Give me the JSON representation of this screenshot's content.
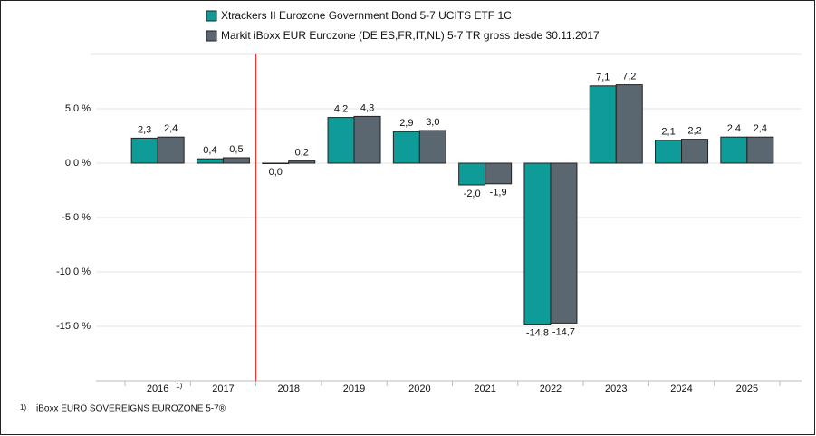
{
  "chart_data": {
    "type": "bar",
    "categories": [
      "2016",
      "2017",
      "2018",
      "2019",
      "2020",
      "2021",
      "2022",
      "2023",
      "2024",
      "2025"
    ],
    "series": [
      {
        "name": "Xtrackers II Eurozone Government Bond 5-7 UCITS ETF 1C",
        "color": "#0f9b98",
        "values": [
          2.3,
          0.4,
          0.0,
          4.2,
          2.9,
          -2.0,
          -14.8,
          7.1,
          2.1,
          2.4
        ],
        "value_labels": [
          "2,3",
          "0,4",
          "0,0",
          "4,2",
          "2,9",
          "-2,0",
          "-14,8",
          "7,1",
          "2,1",
          "2,4"
        ]
      },
      {
        "name": "Markit iBoxx EUR Eurozone (DE,ES,FR,IT,NL) 5-7 TR gross desde 30.11.2017",
        "color": "#5b6770",
        "values": [
          2.4,
          0.5,
          0.2,
          4.3,
          3.0,
          -1.9,
          -14.7,
          7.2,
          2.2,
          2.4
        ],
        "value_labels": [
          "2,4",
          "0,5",
          "0,2",
          "4,3",
          "3,0",
          "-1,9",
          "-14,7",
          "7,2",
          "2,2",
          "2,4"
        ]
      }
    ],
    "ylim": [
      -20,
      10
    ],
    "yticks": [
      {
        "value": -15,
        "label": "-15,0 %"
      },
      {
        "value": -10,
        "label": "-10,0 %"
      },
      {
        "value": -5,
        "label": "-5,0 %"
      },
      {
        "value": 0,
        "label": "0,0 %"
      },
      {
        "value": 5,
        "label": "5,0 %"
      }
    ],
    "grid": true,
    "legend": "top",
    "marker_line": {
      "after_category": 1,
      "color": "#e53935"
    },
    "footnote": {
      "category": 0,
      "marker": "1)",
      "text": "iBoxx EURO SOVEREIGNS EUROZONE 5-7®"
    }
  }
}
